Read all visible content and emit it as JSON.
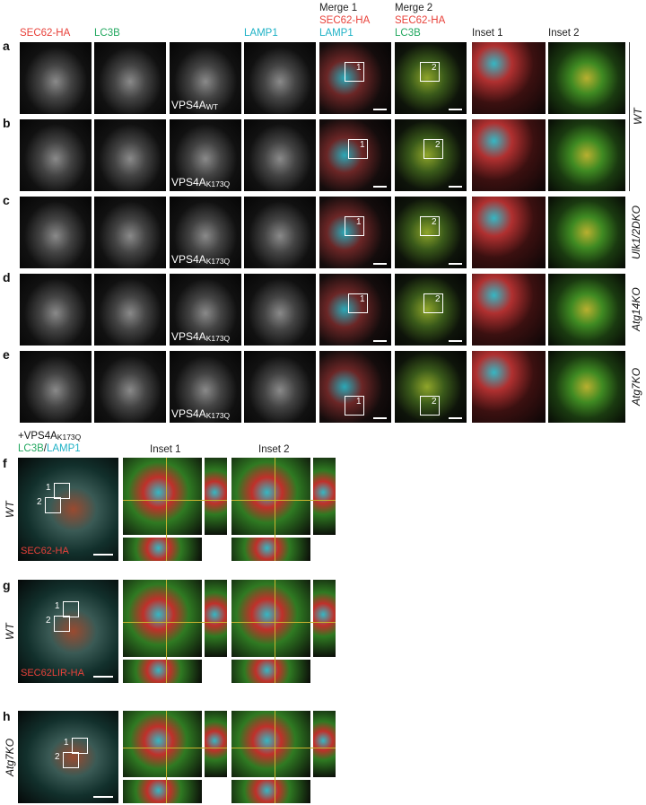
{
  "top": {
    "headers": [
      {
        "lines": [
          {
            "text": "SEC62-HA",
            "color": "#e8413a"
          }
        ]
      },
      {
        "lines": [
          {
            "text": "LC3B",
            "color": "#23a860"
          }
        ]
      },
      null,
      {
        "lines": [
          {
            "text": "LAMP1",
            "color": "#1fb2c6"
          }
        ]
      },
      {
        "lines": [
          {
            "text": "Merge 1",
            "color": "#222222"
          },
          {
            "text": "SEC62-HA",
            "color": "#e8413a"
          },
          {
            "text": "LAMP1",
            "color": "#1fb2c6"
          }
        ]
      },
      {
        "lines": [
          {
            "text": "Merge 2",
            "color": "#222222"
          },
          {
            "text": "SEC62-HA",
            "color": "#e8413a"
          },
          {
            "text": "LC3B",
            "color": "#23a860"
          }
        ]
      },
      {
        "lines": [
          {
            "text": "Inset 1",
            "color": "#222222"
          }
        ]
      },
      {
        "lines": [
          {
            "text": "Inset 2",
            "color": "#222222"
          }
        ]
      }
    ],
    "rows": [
      {
        "letter": "a",
        "construct": {
          "name": "VPS4A",
          "sub": "WT"
        }
      },
      {
        "letter": "b",
        "construct": {
          "name": "VPS4A",
          "sub": "K173Q"
        }
      },
      {
        "letter": "c",
        "construct": {
          "name": "VPS4A",
          "sub": "K173Q"
        }
      },
      {
        "letter": "d",
        "construct": {
          "name": "VPS4A",
          "sub": "K173Q"
        }
      },
      {
        "letter": "e",
        "construct": {
          "name": "VPS4A",
          "sub": "K173Q"
        }
      }
    ],
    "genotypes": [
      {
        "text": "WT",
        "rows": [
          "a",
          "b"
        ]
      },
      {
        "text": "Ulk1/2DKO",
        "rows": [
          "c"
        ]
      },
      {
        "text": "Atg14KO",
        "rows": [
          "d"
        ]
      },
      {
        "text": "Atg7KO",
        "rows": [
          "e"
        ]
      }
    ],
    "box_labels": [
      "1",
      "2"
    ]
  },
  "bottom": {
    "construct": {
      "prefix": "+VPS4A",
      "sub": "K173Q"
    },
    "stain": [
      {
        "text": "LC3B",
        "color": "#23a860"
      },
      {
        "text": "/",
        "color": "#222222"
      },
      {
        "text": "LAMP1",
        "color": "#1fb2c6"
      }
    ],
    "insets": [
      "Inset 1",
      "Inset 2"
    ],
    "rows": [
      {
        "letter": "f",
        "genotype": "WT",
        "label": "SEC62-HA"
      },
      {
        "letter": "g",
        "genotype": "WT",
        "label": "SEC62LIR-HA"
      },
      {
        "letter": "h",
        "genotype": "Atg7KO"
      }
    ]
  }
}
